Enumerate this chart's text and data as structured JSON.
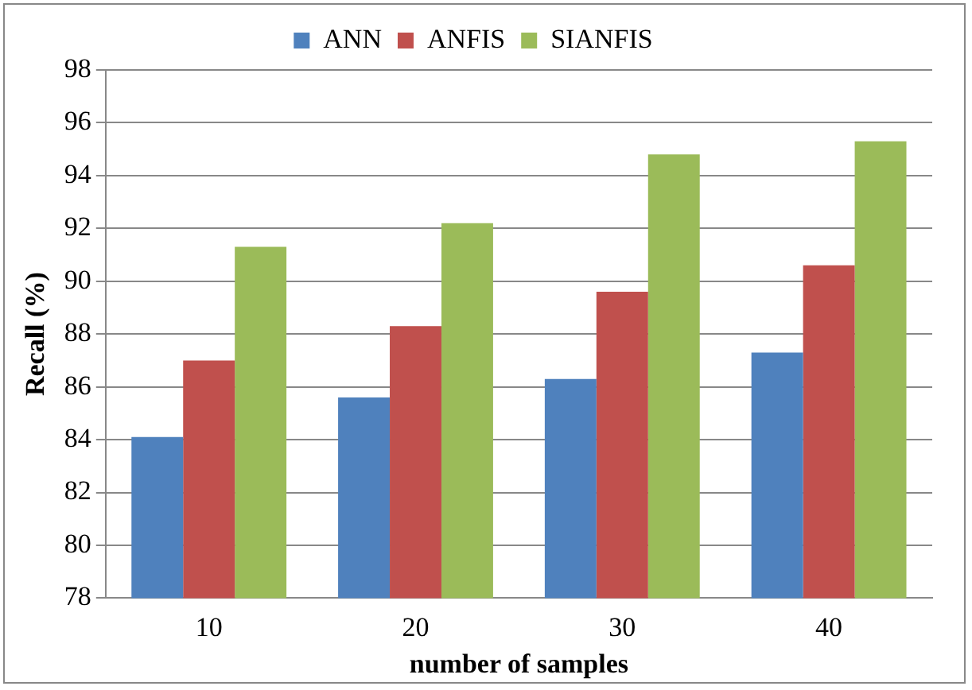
{
  "chart_data": {
    "type": "bar",
    "xlabel": "number of samples",
    "ylabel": "Recall (%)",
    "categories": [
      "10",
      "20",
      "30",
      "40"
    ],
    "series": [
      {
        "name": "ANN",
        "color": "#4f81bd",
        "values": [
          84.1,
          85.6,
          86.3,
          87.3
        ]
      },
      {
        "name": "ANFIS",
        "color": "#c0504d",
        "values": [
          87.0,
          88.3,
          89.6,
          90.6
        ]
      },
      {
        "name": "SIANFIS",
        "color": "#9bbb59",
        "values": [
          91.3,
          92.2,
          94.8,
          95.3
        ]
      }
    ],
    "ylim": [
      78,
      98
    ],
    "yticks": [
      78,
      80,
      82,
      84,
      86,
      88,
      90,
      92,
      94,
      96,
      98
    ],
    "grid": "y",
    "legend": "top"
  }
}
